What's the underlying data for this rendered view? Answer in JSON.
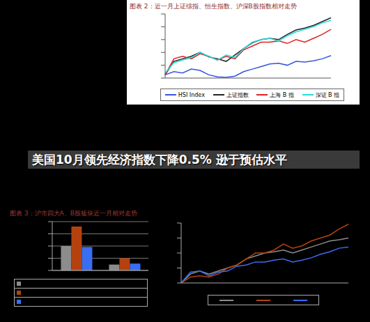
{
  "headline": "美国10月领先经济指数下降0.5% 逊于预估水平",
  "chart_data": [
    {
      "type": "line",
      "title": "图表 2：近一月上证综指、恒生指数、沪深B股指数相对走势",
      "categories": [
        null,
        null,
        null,
        null,
        null,
        null,
        null,
        null,
        null,
        null,
        null,
        null,
        null,
        null,
        null,
        null,
        null,
        null,
        null,
        null
      ],
      "series": [
        {
          "name": "HSI  Index",
          "color": "#3355dd",
          "values": [
            5,
            10,
            8,
            14,
            12,
            5,
            2,
            1,
            3,
            10,
            14,
            18,
            22,
            23,
            20,
            26,
            25,
            27,
            30,
            35
          ]
        },
        {
          "name": "上证指数",
          "color": "#222222",
          "values": [
            5,
            26,
            30,
            34,
            40,
            33,
            30,
            26,
            36,
            46,
            55,
            60,
            62,
            60,
            68,
            75,
            78,
            82,
            88,
            94
          ]
        },
        {
          "name": "上海 B 指",
          "color": "#dd2222",
          "values": [
            5,
            30,
            34,
            30,
            38,
            34,
            28,
            34,
            30,
            44,
            50,
            56,
            56,
            58,
            54,
            60,
            56,
            62,
            68,
            76
          ]
        },
        {
          "name": "深证 B 指",
          "color": "#22dddd",
          "values": [
            8,
            24,
            28,
            32,
            40,
            34,
            28,
            36,
            32,
            46,
            56,
            60,
            62,
            58,
            66,
            72,
            76,
            80,
            86,
            90
          ]
        }
      ],
      "ylim": [
        0,
        100
      ],
      "yticks": [
        0,
        20,
        40,
        60,
        80,
        100
      ],
      "grid": false,
      "legend": "bottom",
      "tick_labels": false
    },
    {
      "type": "bar",
      "title": "图表 3：沪市四大A、B股板块近一月相对走势",
      "categories": [
        null,
        null
      ],
      "series": [
        {
          "color": "#8c8c8c",
          "values": [
            50,
            12
          ]
        },
        {
          "color": "#b5420e",
          "values": [
            90,
            25
          ]
        },
        {
          "color": "#3a6ef0",
          "values": [
            48,
            14
          ]
        }
      ],
      "ylim": [
        0,
        100
      ],
      "yticks": [
        0,
        25,
        50,
        75,
        100
      ],
      "grid": true,
      "legend": "bottom",
      "tick_labels": false
    },
    {
      "type": "line",
      "categories": [
        null,
        null,
        null,
        null,
        null,
        null,
        null,
        null,
        null,
        null,
        null,
        null,
        null,
        null,
        null,
        null,
        null,
        null,
        null
      ],
      "series": [
        {
          "color": "#8c8c8c",
          "values": [
            0,
            15,
            20,
            15,
            20,
            25,
            30,
            40,
            45,
            50,
            52,
            55,
            50,
            55,
            60,
            65,
            70,
            72,
            75
          ]
        },
        {
          "color": "#b5420e",
          "values": [
            0,
            10,
            12,
            10,
            15,
            25,
            30,
            40,
            50,
            50,
            55,
            65,
            58,
            62,
            70,
            75,
            80,
            90,
            98
          ]
        },
        {
          "color": "#3a6ef0",
          "values": [
            0,
            18,
            20,
            12,
            18,
            20,
            28,
            30,
            35,
            35,
            38,
            40,
            35,
            38,
            42,
            48,
            52,
            58,
            60
          ]
        }
      ],
      "ylim": [
        0,
        100
      ],
      "yticks": [
        0,
        25,
        50,
        75,
        100
      ],
      "grid": false,
      "legend": "bottom",
      "tick_labels": false
    }
  ]
}
